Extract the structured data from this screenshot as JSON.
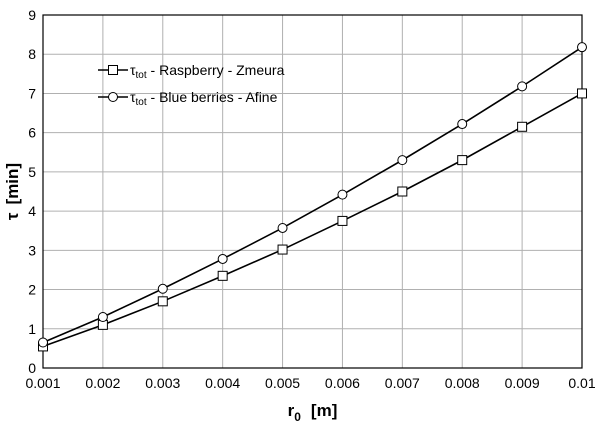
{
  "chart_data": {
    "type": "line",
    "xlabel": {
      "main": "r",
      "sub": "0",
      "unit": "[m]"
    },
    "ylabel": {
      "main": "τ",
      "unit": "[min]"
    },
    "xlim": [
      0.001,
      0.01
    ],
    "ylim": [
      0,
      9
    ],
    "x_ticks": [
      "0.001",
      "0.002",
      "0.003",
      "0.004",
      "0.005",
      "0.006",
      "0.007",
      "0.008",
      "0.009",
      "0.01"
    ],
    "y_ticks": [
      "0",
      "1",
      "2",
      "3",
      "4",
      "5",
      "6",
      "7",
      "8",
      "9"
    ],
    "grid": true,
    "legend_position": "top-left",
    "x": [
      0.001,
      0.002,
      0.003,
      0.004,
      0.005,
      0.006,
      0.007,
      0.008,
      0.009,
      0.01
    ],
    "series": [
      {
        "name": {
          "symbol": "τ",
          "sub": "tot",
          "label": " - Raspberry - Zmeura"
        },
        "marker": "square",
        "values": [
          0.55,
          1.1,
          1.7,
          2.35,
          3.02,
          3.75,
          4.5,
          5.3,
          6.15,
          7.0
        ]
      },
      {
        "name": {
          "symbol": "τ",
          "sub": "tot",
          "label": " - Blue berries - Afine"
        },
        "marker": "circle",
        "values": [
          0.65,
          1.3,
          2.02,
          2.78,
          3.57,
          4.42,
          5.3,
          6.22,
          7.18,
          8.18
        ]
      }
    ],
    "colors": {
      "line": "#000000",
      "grid": "#b0b0b0",
      "marker_fill": "#ffffff"
    }
  }
}
